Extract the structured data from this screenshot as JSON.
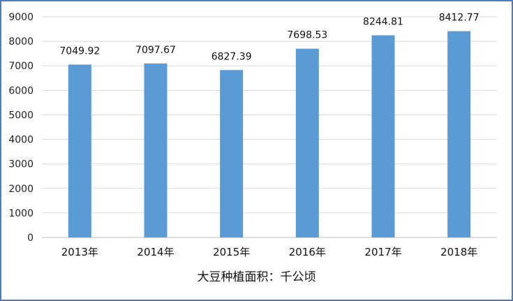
{
  "chart_data": {
    "type": "bar",
    "xlabel": "大豆种植面积：千公顷",
    "ylabel": "",
    "categories": [
      "2013年",
      "2014年",
      "2015年",
      "2016年",
      "2017年",
      "2018年"
    ],
    "values": [
      7049.92,
      7097.67,
      6827.39,
      7698.53,
      8244.81,
      8412.77
    ],
    "value_labels": [
      "7049.92",
      "7097.67",
      "6827.39",
      "7698.53",
      "8244.81",
      "8412.77"
    ],
    "ylim": [
      0,
      9000
    ],
    "yticks": [
      "0",
      "1000",
      "2000",
      "3000",
      "4000",
      "5000",
      "6000",
      "7000",
      "8000",
      "9000"
    ],
    "grid": true,
    "legend": "none",
    "colors": {
      "bar": "#5b9bd5",
      "grid": "#d9d9d9",
      "axis": "#bfbfbf",
      "border": "#4a7ebb"
    }
  }
}
